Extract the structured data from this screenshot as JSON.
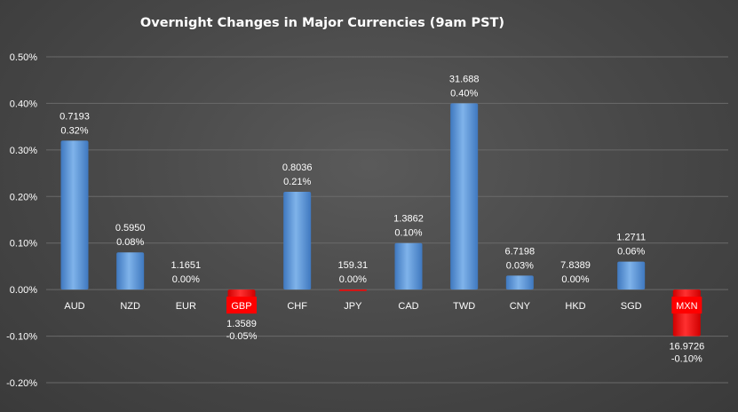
{
  "chart_data": {
    "type": "bar",
    "title": "Overnight Changes in Major Currencies (9am PST)",
    "xlabel": "",
    "ylabel": "",
    "ylim": [
      -0.2,
      0.5
    ],
    "yticks": [
      "-0.20%",
      "-0.10%",
      "0.00%",
      "0.10%",
      "0.20%",
      "0.30%",
      "0.40%",
      "0.50%"
    ],
    "grid": true,
    "legend": "none",
    "categories": [
      "AUD",
      "NZD",
      "EUR",
      "GBP",
      "CHF",
      "JPY",
      "CAD",
      "TWD",
      "CNY",
      "HKD",
      "SGD",
      "MXN"
    ],
    "values": [
      0.32,
      0.08,
      0.0,
      -0.05,
      0.21,
      0.0,
      0.1,
      0.4,
      0.03,
      0.0,
      0.06,
      -0.1
    ],
    "rates": [
      "0.7193",
      "0.5950",
      "1.1651",
      "1.3589",
      "0.8036",
      "159.31",
      "1.3862",
      "31.688",
      "6.7198",
      "7.8389",
      "1.2711",
      "16.9726"
    ],
    "pct_labels": [
      "0.32%",
      "0.08%",
      "0.00%",
      "-0.05%",
      "0.21%",
      "0.00%",
      "0.10%",
      "0.40%",
      "0.03%",
      "0.00%",
      "0.06%",
      "-0.10%"
    ],
    "colors": {
      "positive": "#5b9bd5",
      "negative": "#ff0000"
    }
  }
}
